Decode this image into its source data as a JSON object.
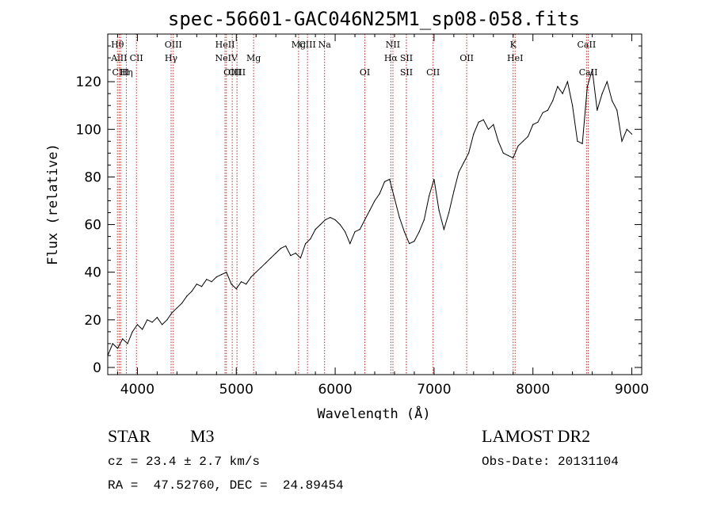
{
  "chart_data": {
    "type": "line",
    "title": "spec-56601-GAC046N25M1_sp08-058.fits",
    "xlabel": "Wavelength (Å)",
    "ylabel": "Flux (relative)",
    "xlim": [
      3700,
      9100
    ],
    "ylim": [
      -3,
      140
    ],
    "x_ticks": [
      4000,
      5000,
      6000,
      7000,
      8000,
      9000
    ],
    "y_ticks": [
      0,
      20,
      40,
      60,
      80,
      100,
      120
    ],
    "grid": false,
    "series": [
      {
        "x": [
          3700,
          3750,
          3800,
          3850,
          3900,
          3950,
          4000,
          4050,
          4100,
          4150,
          4200,
          4250,
          4300,
          4350,
          4400,
          4450,
          4500,
          4550,
          4600,
          4650,
          4700,
          4750,
          4800,
          4850,
          4900,
          4950,
          5000,
          5050,
          5100,
          5150,
          5200,
          5250,
          5300,
          5350,
          5400,
          5450,
          5500,
          5550,
          5600,
          5650,
          5700,
          5750,
          5800,
          5850,
          5900,
          5950,
          6000,
          6050,
          6100,
          6150,
          6200,
          6250,
          6300,
          6350,
          6400,
          6450,
          6500,
          6550,
          6600,
          6650,
          6700,
          6750,
          6800,
          6850,
          6900,
          6950,
          7000,
          7050,
          7100,
          7150,
          7200,
          7250,
          7300,
          7350,
          7400,
          7450,
          7500,
          7550,
          7600,
          7650,
          7700,
          7750,
          7800,
          7850,
          7900,
          7950,
          8000,
          8050,
          8100,
          8150,
          8200,
          8250,
          8300,
          8350,
          8400,
          8450,
          8500,
          8550,
          8600,
          8650,
          8700,
          8750,
          8800,
          8850,
          8900,
          8950,
          9000
        ],
        "values": [
          5,
          10,
          8,
          12,
          10,
          15,
          18,
          16,
          20,
          19,
          21,
          18,
          20,
          23,
          25,
          27,
          30,
          32,
          35,
          34,
          37,
          36,
          38,
          39,
          40,
          35,
          33,
          36,
          35,
          38,
          40,
          42,
          44,
          46,
          48,
          50,
          51,
          47,
          48,
          46,
          52,
          54,
          58,
          60,
          62,
          63,
          62,
          60,
          57,
          52,
          57,
          58,
          62,
          66,
          70,
          73,
          78,
          79,
          71,
          63,
          57,
          52,
          53,
          57,
          62,
          72,
          79,
          66,
          58,
          65,
          74,
          82,
          86,
          90,
          98,
          103,
          104,
          100,
          102,
          95,
          90,
          89,
          88,
          93,
          95,
          97,
          102,
          103,
          107,
          108,
          112,
          118,
          115,
          120,
          110,
          95,
          94,
          118,
          125,
          108,
          115,
          120,
          112,
          108,
          95,
          100,
          98
        ]
      }
    ],
    "spectral_lines": [
      {
        "name": "Hθ",
        "x": 3798,
        "row": 0
      },
      {
        "name": "AlII",
        "x": 3815,
        "row": 1
      },
      {
        "name": "CIII",
        "x": 3830,
        "row": 2
      },
      {
        "name": "Hη",
        "x": 3889,
        "row": 2
      },
      {
        "name": "CII",
        "x": 3990,
        "row": 1
      },
      {
        "name": "OIII",
        "x": 4363,
        "row": 0
      },
      {
        "name": "Hγ",
        "x": 4341,
        "row": 1
      },
      {
        "name": "HeII",
        "x": 4886,
        "row": 0
      },
      {
        "name": "NeIV",
        "x": 4900,
        "row": 1
      },
      {
        "name": "OIII",
        "x": 4959,
        "row": 2
      },
      {
        "name": "OIII",
        "x": 5007,
        "row": 2
      },
      {
        "name": "Mg",
        "x": 5175,
        "row": 1
      },
      {
        "name": "Mg",
        "x": 5630,
        "row": 0
      },
      {
        "name": "CIII",
        "x": 5720,
        "row": 0
      },
      {
        "name": "Na",
        "x": 5893,
        "row": 0
      },
      {
        "name": "OI",
        "x": 6300,
        "row": 2
      },
      {
        "name": "NII",
        "x": 6584,
        "row": 0
      },
      {
        "name": "Hα",
        "x": 6563,
        "row": 1
      },
      {
        "name": "SII",
        "x": 6720,
        "row": 1
      },
      {
        "name": "SII",
        "x": 6720,
        "row": 2
      },
      {
        "name": "CII",
        "x": 6990,
        "row": 2
      },
      {
        "name": "OII",
        "x": 7330,
        "row": 1
      },
      {
        "name": "K",
        "x": 7800,
        "row": 0
      },
      {
        "name": "HeI",
        "x": 7820,
        "row": 1
      },
      {
        "name": "CaII",
        "x": 8542,
        "row": 0
      },
      {
        "name": "CaII",
        "x": 8560,
        "row": 2
      }
    ]
  },
  "info": {
    "object_class": "STAR",
    "subclass": "M3",
    "survey": "LAMOST DR2",
    "cz": "cz = 23.4 ± 2.7 km/s",
    "obs_date": "Obs-Date: 20131104",
    "coords": "RA =  47.52760, DEC =  24.89454"
  }
}
